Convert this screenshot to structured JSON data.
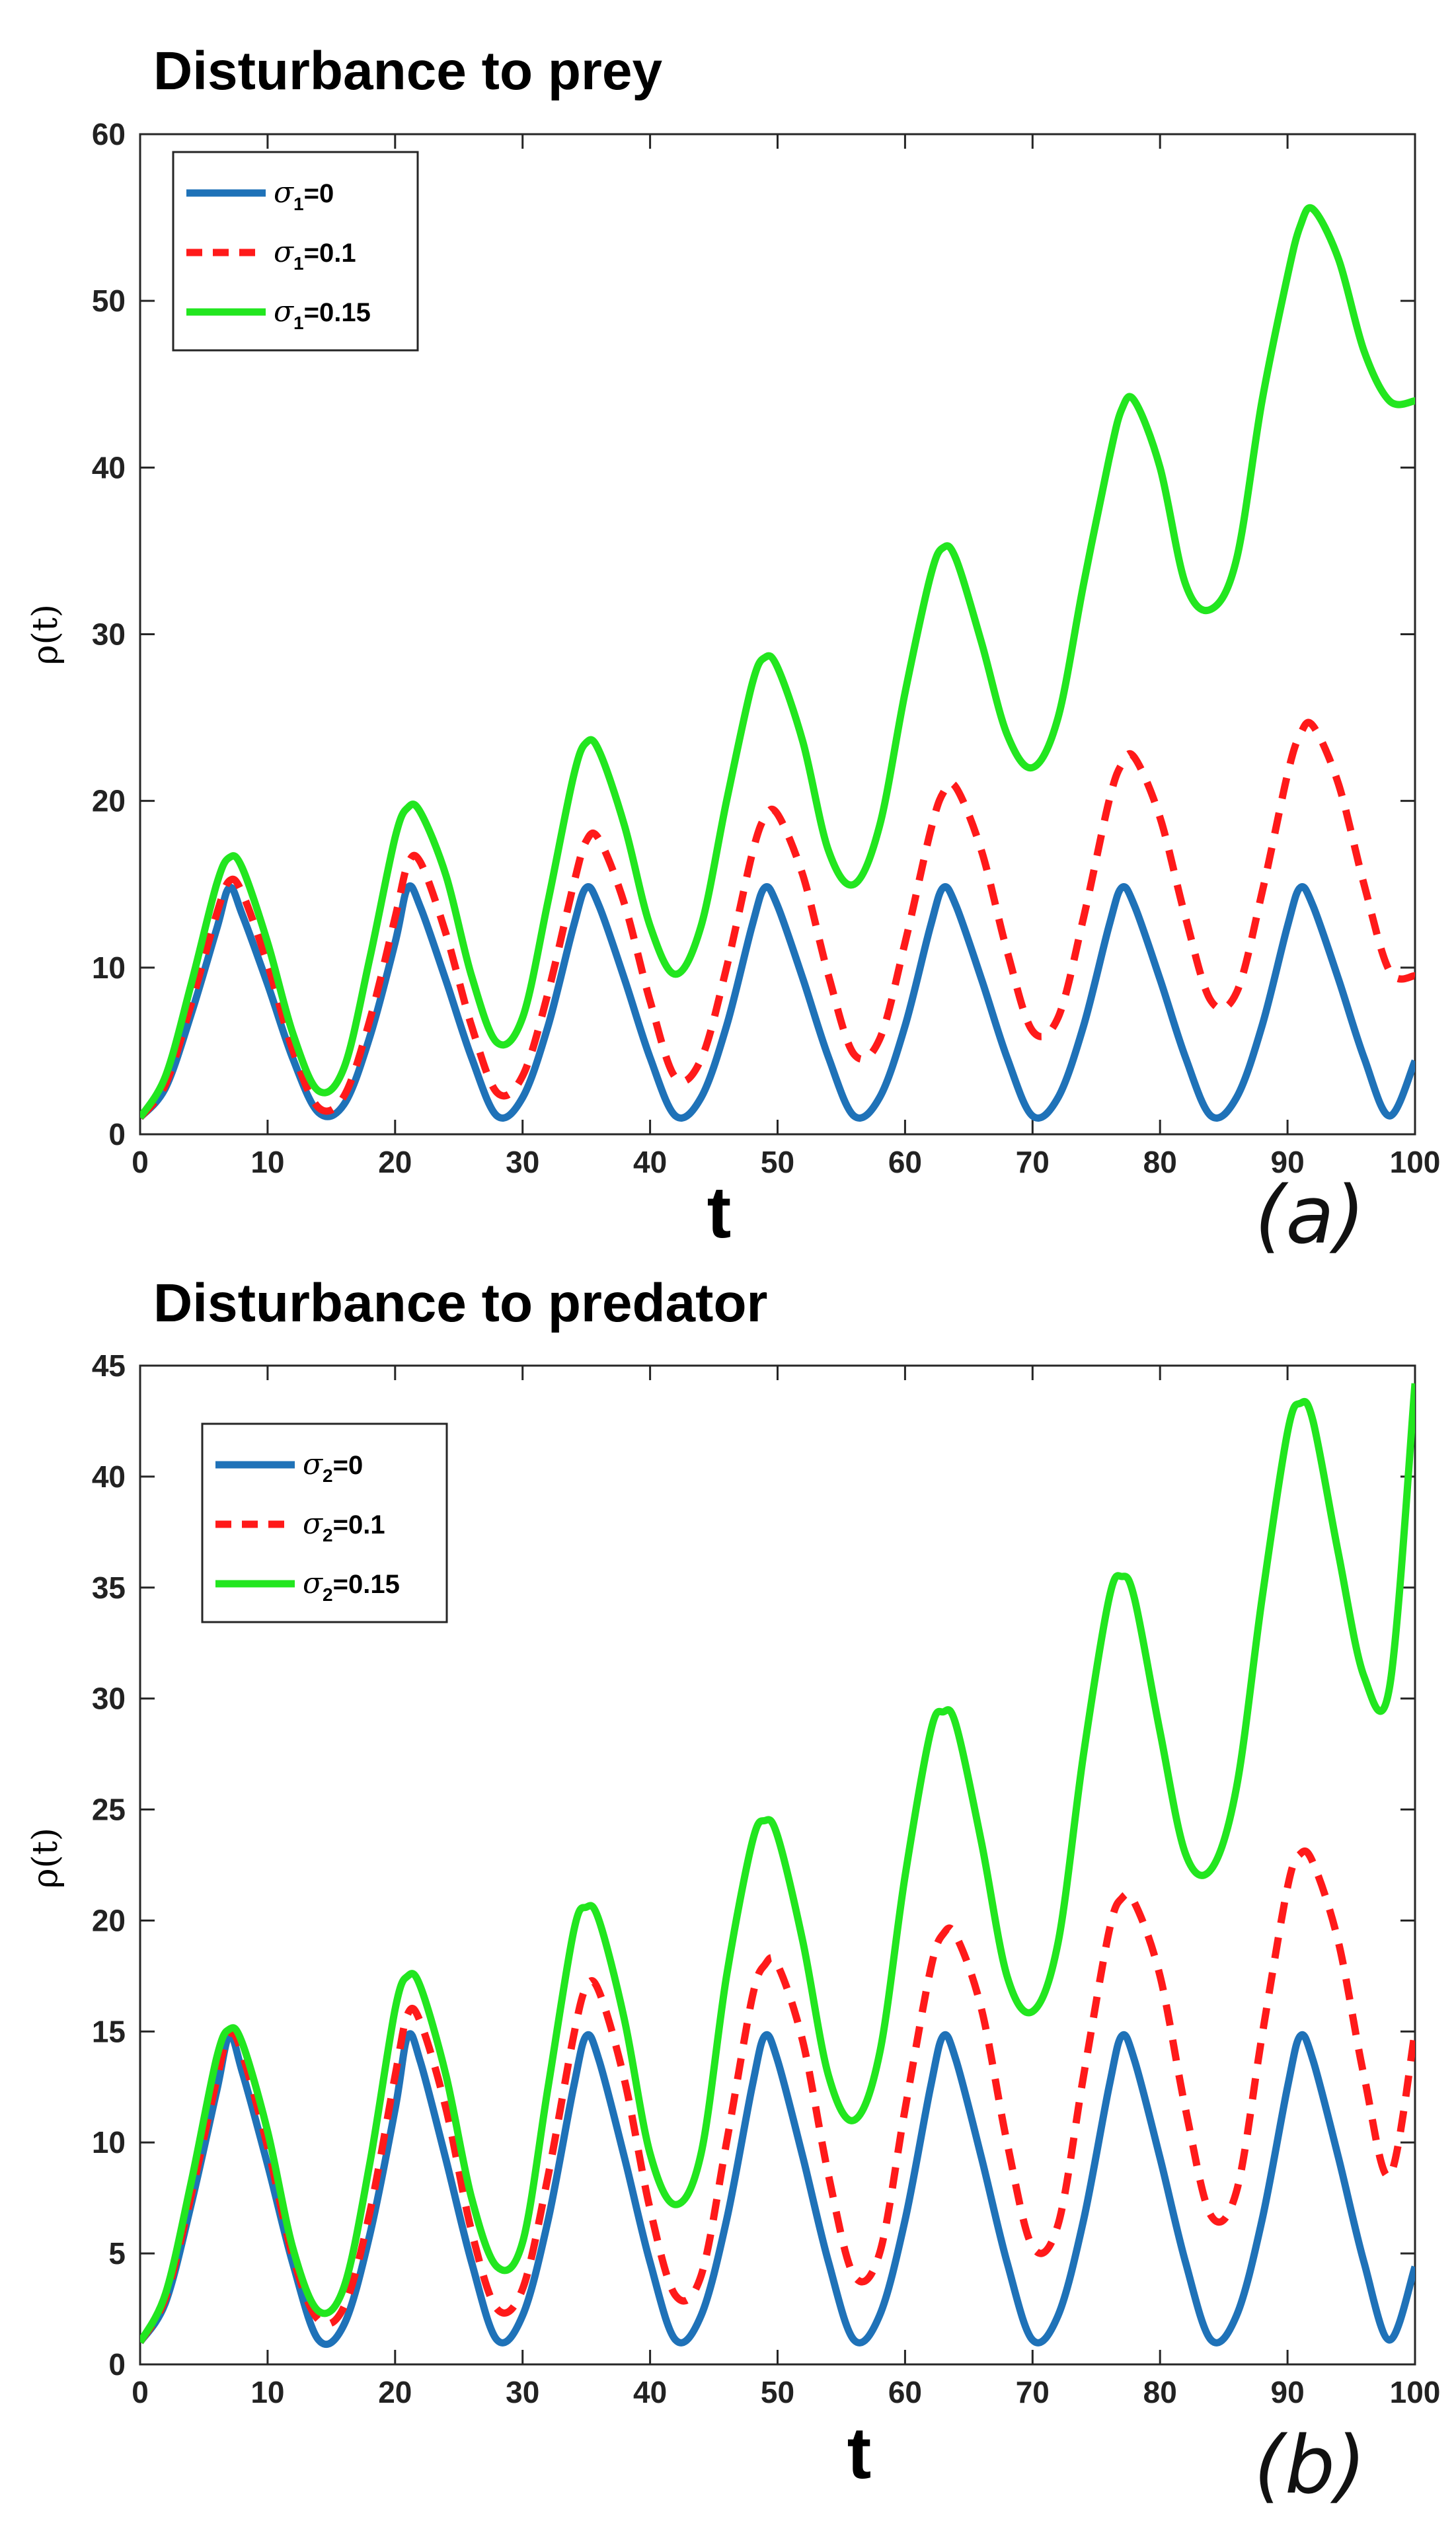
{
  "chart_data": [
    {
      "type": "line",
      "panel_label": "(a)",
      "title": "Disturbance to prey",
      "xlabel": "t",
      "ylabel": "ρ(t)",
      "xlim": [
        0,
        100
      ],
      "ylim": [
        0,
        60
      ],
      "xticks": [
        0,
        10,
        20,
        30,
        40,
        50,
        60,
        70,
        80,
        90,
        100
      ],
      "yticks": [
        0,
        10,
        20,
        30,
        40,
        50,
        60
      ],
      "legend_position": "top-left",
      "x": [
        0,
        2,
        4,
        6,
        7,
        8,
        10,
        12,
        14,
        16,
        18,
        20,
        21,
        22,
        24,
        26,
        28,
        30,
        32,
        34,
        35,
        36,
        38,
        40,
        42,
        44,
        46,
        48,
        49,
        50,
        52,
        54,
        56,
        58,
        60,
        62,
        63,
        64,
        66,
        68,
        70,
        72,
        74,
        76,
        77,
        78,
        80,
        82,
        84,
        86,
        88,
        90,
        91,
        92,
        94,
        96,
        98,
        100
      ],
      "series": [
        {
          "name": "σ1=0",
          "symbol": "σ",
          "subscript": "1",
          "value_label": "=0",
          "color": "#1f72b8",
          "dash": "solid",
          "values": [
            1.0,
            2.8,
            7.2,
            12.3,
            14.8,
            13.2,
            9.0,
            4.5,
            1.3,
            1.8,
            5.8,
            11.5,
            14.8,
            13.6,
            9.2,
            4.6,
            1.1,
            2.2,
            6.5,
            12.5,
            14.8,
            13.7,
            9.3,
            4.6,
            1.1,
            2.2,
            6.5,
            12.5,
            14.8,
            13.7,
            9.3,
            4.6,
            1.1,
            2.2,
            6.5,
            12.5,
            14.8,
            13.7,
            9.3,
            4.6,
            1.1,
            2.2,
            6.5,
            12.5,
            14.8,
            13.7,
            9.3,
            4.6,
            1.1,
            2.2,
            6.5,
            12.5,
            14.8,
            13.7,
            9.3,
            4.6,
            1.1,
            4.4
          ]
        },
        {
          "name": "σ1=0.1",
          "symbol": "σ",
          "subscript": "1",
          "value_label": "=0.1",
          "color": "#ff1a1a",
          "dash": "dashed",
          "values": [
            1.0,
            3.0,
            7.8,
            13.2,
            15.2,
            14.5,
            10.2,
            5.0,
            1.6,
            2.3,
            6.8,
            13.0,
            16.2,
            16.3,
            12.0,
            6.5,
            2.5,
            3.5,
            8.5,
            15.0,
            17.6,
            17.7,
            13.8,
            8.0,
            3.4,
            4.5,
            10.0,
            16.8,
            19.0,
            19.2,
            15.5,
            9.5,
            4.8,
            5.7,
            11.5,
            18.2,
            20.5,
            20.8,
            17.0,
            11.0,
            6.2,
            7.0,
            13.0,
            20.0,
            22.2,
            22.6,
            19.0,
            13.0,
            8.0,
            8.5,
            14.5,
            21.6,
            24.0,
            24.5,
            21.0,
            15.0,
            9.8,
            9.5
          ]
        },
        {
          "name": "σ1=0.15",
          "symbol": "σ",
          "subscript": "1",
          "value_label": "=0.15",
          "color": "#22e61f",
          "dash": "solid",
          "values": [
            1.0,
            3.5,
            9.0,
            15.0,
            16.6,
            16.0,
            11.5,
            6.0,
            2.6,
            4.0,
            10.5,
            17.8,
            19.6,
            19.3,
            15.5,
            9.5,
            5.5,
            7.0,
            14.0,
            21.5,
            23.5,
            23.0,
            18.5,
            12.5,
            9.6,
            12.5,
            20.0,
            27.0,
            28.6,
            28.0,
            23.5,
            17.0,
            15.0,
            18.5,
            26.5,
            33.5,
            35.2,
            34.5,
            29.5,
            24.0,
            22.0,
            25.0,
            33.0,
            40.5,
            43.5,
            44.0,
            40.0,
            33.0,
            31.5,
            34.5,
            44.0,
            51.5,
            54.5,
            55.5,
            52.5,
            47.0,
            44.0,
            44.0
          ]
        }
      ]
    },
    {
      "type": "line",
      "panel_label": "(b)",
      "title": "Disturbance to predator",
      "xlabel": "t",
      "ylabel": "ρ(t)",
      "xlim": [
        0,
        100
      ],
      "ylim": [
        0,
        45
      ],
      "xticks": [
        0,
        10,
        20,
        30,
        40,
        50,
        60,
        70,
        80,
        90,
        100
      ],
      "yticks": [
        0,
        5,
        10,
        15,
        20,
        25,
        30,
        35,
        40,
        45
      ],
      "legend_position": "top-left",
      "x": [
        0,
        2,
        4,
        6,
        7,
        8,
        10,
        12,
        14,
        16,
        18,
        20,
        21,
        22,
        24,
        26,
        28,
        30,
        32,
        34,
        35,
        36,
        38,
        40,
        42,
        44,
        46,
        48,
        49,
        50,
        52,
        54,
        56,
        58,
        60,
        62,
        63,
        64,
        66,
        68,
        70,
        72,
        74,
        76,
        77,
        78,
        80,
        82,
        84,
        86,
        88,
        90,
        91,
        92,
        94,
        96,
        98,
        100
      ],
      "series": [
        {
          "name": "σ2=0",
          "symbol": "σ",
          "subscript": "2",
          "value_label": "=0",
          "color": "#1f72b8",
          "dash": "solid",
          "values": [
            1.0,
            2.8,
            7.2,
            12.3,
            14.8,
            13.2,
            9.0,
            4.5,
            1.1,
            1.8,
            5.8,
            11.5,
            14.8,
            13.6,
            9.2,
            4.6,
            1.1,
            2.2,
            6.5,
            12.5,
            14.8,
            13.7,
            9.3,
            4.6,
            1.1,
            2.2,
            6.5,
            12.5,
            14.8,
            13.7,
            9.3,
            4.6,
            1.1,
            2.2,
            6.5,
            12.5,
            14.8,
            13.7,
            9.3,
            4.6,
            1.1,
            2.2,
            6.5,
            12.5,
            14.8,
            13.7,
            9.3,
            4.6,
            1.1,
            2.2,
            6.5,
            12.5,
            14.8,
            13.7,
            9.3,
            4.6,
            1.1,
            4.4
          ]
        },
        {
          "name": "σ2=0.1",
          "symbol": "σ",
          "subscript": "2",
          "value_label": "=0.1",
          "color": "#ff1a1a",
          "dash": "dashed",
          "values": [
            1.0,
            3.0,
            7.6,
            12.8,
            14.9,
            14.0,
            9.8,
            4.8,
            2.0,
            2.6,
            6.8,
            13.0,
            15.8,
            15.4,
            11.5,
            6.0,
            2.5,
            3.4,
            8.5,
            14.8,
            17.0,
            16.8,
            12.8,
            7.0,
            3.1,
            4.0,
            10.0,
            16.5,
            18.0,
            18.0,
            14.5,
            8.5,
            4.0,
            5.0,
            11.5,
            17.8,
            19.4,
            19.3,
            16.0,
            10.0,
            5.3,
            6.3,
            13.0,
            19.5,
            21.0,
            20.8,
            17.5,
            11.5,
            6.7,
            7.8,
            14.8,
            21.5,
            23.0,
            22.6,
            19.0,
            13.0,
            8.5,
            15.0
          ]
        },
        {
          "name": "σ2=0.15",
          "symbol": "σ",
          "subscript": "2",
          "value_label": "=0.15",
          "color": "#22e61f",
          "dash": "solid",
          "values": [
            1.0,
            3.2,
            8.2,
            13.8,
            15.1,
            14.5,
            10.5,
            5.2,
            2.4,
            3.5,
            9.0,
            16.0,
            17.5,
            17.0,
            13.0,
            7.5,
            4.4,
            5.5,
            12.5,
            19.5,
            20.6,
            20.0,
            15.5,
            9.5,
            7.2,
            9.5,
            17.5,
            23.5,
            24.5,
            23.8,
            19.0,
            13.0,
            11.0,
            14.0,
            22.0,
            28.5,
            29.4,
            28.8,
            23.5,
            17.5,
            15.9,
            19.0,
            27.5,
            34.5,
            35.5,
            34.5,
            28.5,
            23.0,
            22.3,
            26.0,
            34.5,
            42.0,
            43.3,
            42.5,
            36.5,
            31.0,
            30.5,
            44.2
          ]
        }
      ]
    }
  ]
}
